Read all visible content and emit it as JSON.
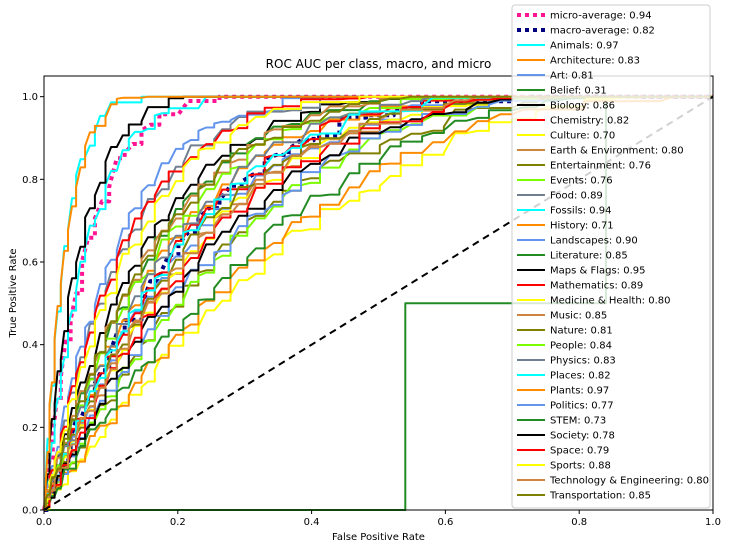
{
  "chart_data": {
    "type": "line",
    "title": "ROC AUC per class, macro, and micro",
    "xlabel": "False Positive Rate",
    "ylabel": "True Positive Rate",
    "xlim": [
      0.0,
      1.0
    ],
    "ylim": [
      0.0,
      1.05
    ],
    "xticks": [
      "0.0",
      "0.2",
      "0.4",
      "0.6",
      "0.8",
      "1.0"
    ],
    "yticks": [
      "0.0",
      "0.2",
      "0.4",
      "0.6",
      "0.8",
      "1.0"
    ],
    "grid": false,
    "legend_position": "upper-right",
    "diagonal": {
      "x": [
        0,
        1
      ],
      "y": [
        0,
        1
      ],
      "color": "#000000",
      "style": "dashed"
    },
    "series": [
      {
        "name": "micro-average: 0.94",
        "auc": 0.94,
        "color": "#ff1493",
        "style": "dotted",
        "width": 4
      },
      {
        "name": "macro-average: 0.82",
        "auc": 0.82,
        "color": "#000080",
        "style": "dotted",
        "width": 4
      },
      {
        "name": "Animals: 0.97",
        "auc": 0.97,
        "color": "#00ffff",
        "style": "solid",
        "width": 2
      },
      {
        "name": "Architecture: 0.83",
        "auc": 0.83,
        "color": "#ff8c00",
        "style": "solid",
        "width": 2
      },
      {
        "name": "Art: 0.81",
        "auc": 0.81,
        "color": "#6495ed",
        "style": "solid",
        "width": 2
      },
      {
        "name": "Belief: 0.31",
        "auc": 0.31,
        "color": "#228b22",
        "style": "solid",
        "width": 2,
        "x": [
          0.0,
          0.54,
          0.54,
          0.84,
          0.84,
          1.0
        ],
        "y": [
          0.0,
          0.0,
          0.5,
          0.5,
          1.0,
          1.0
        ]
      },
      {
        "name": "Biology: 0.86",
        "auc": 0.86,
        "color": "#000000",
        "style": "solid",
        "width": 2
      },
      {
        "name": "Chemistry: 0.82",
        "auc": 0.82,
        "color": "#ff0000",
        "style": "solid",
        "width": 2
      },
      {
        "name": "Culture: 0.70",
        "auc": 0.7,
        "color": "#ffff00",
        "style": "solid",
        "width": 2
      },
      {
        "name": "Earth & Environment: 0.80",
        "auc": 0.8,
        "color": "#cd853f",
        "style": "solid",
        "width": 2
      },
      {
        "name": "Entertainment: 0.76",
        "auc": 0.76,
        "color": "#808000",
        "style": "solid",
        "width": 2
      },
      {
        "name": "Events: 0.76",
        "auc": 0.76,
        "color": "#7cfc00",
        "style": "solid",
        "width": 2
      },
      {
        "name": "Food: 0.89",
        "auc": 0.89,
        "color": "#708090",
        "style": "solid",
        "width": 2
      },
      {
        "name": "Fossils: 0.94",
        "auc": 0.94,
        "color": "#00ffff",
        "style": "solid",
        "width": 2
      },
      {
        "name": "History: 0.71",
        "auc": 0.71,
        "color": "#ff8c00",
        "style": "solid",
        "width": 2
      },
      {
        "name": "Landscapes: 0.90",
        "auc": 0.9,
        "color": "#6495ed",
        "style": "solid",
        "width": 2
      },
      {
        "name": "Literature: 0.85",
        "auc": 0.85,
        "color": "#228b22",
        "style": "solid",
        "width": 2
      },
      {
        "name": "Maps & Flags: 0.95",
        "auc": 0.95,
        "color": "#000000",
        "style": "solid",
        "width": 2
      },
      {
        "name": "Mathematics: 0.89",
        "auc": 0.89,
        "color": "#ff0000",
        "style": "solid",
        "width": 2
      },
      {
        "name": "Medicine & Health: 0.80",
        "auc": 0.8,
        "color": "#ffff00",
        "style": "solid",
        "width": 2
      },
      {
        "name": "Music: 0.85",
        "auc": 0.85,
        "color": "#cd853f",
        "style": "solid",
        "width": 2
      },
      {
        "name": "Nature: 0.81",
        "auc": 0.81,
        "color": "#808000",
        "style": "solid",
        "width": 2
      },
      {
        "name": "People: 0.84",
        "auc": 0.84,
        "color": "#7cfc00",
        "style": "solid",
        "width": 2
      },
      {
        "name": "Physics: 0.83",
        "auc": 0.83,
        "color": "#708090",
        "style": "solid",
        "width": 2
      },
      {
        "name": "Places: 0.82",
        "auc": 0.82,
        "color": "#00ffff",
        "style": "solid",
        "width": 2
      },
      {
        "name": "Plants: 0.97",
        "auc": 0.97,
        "color": "#ff8c00",
        "style": "solid",
        "width": 2
      },
      {
        "name": "Politics: 0.77",
        "auc": 0.77,
        "color": "#6495ed",
        "style": "solid",
        "width": 2
      },
      {
        "name": "STEM: 0.73",
        "auc": 0.73,
        "color": "#228b22",
        "style": "solid",
        "width": 2
      },
      {
        "name": "Society: 0.78",
        "auc": 0.78,
        "color": "#000000",
        "style": "solid",
        "width": 2
      },
      {
        "name": "Space: 0.79",
        "auc": 0.79,
        "color": "#ff0000",
        "style": "solid",
        "width": 2
      },
      {
        "name": "Sports: 0.88",
        "auc": 0.88,
        "color": "#ffff00",
        "style": "solid",
        "width": 2
      },
      {
        "name": "Technology & Engineering: 0.80",
        "auc": 0.8,
        "color": "#cd853f",
        "style": "solid",
        "width": 2
      },
      {
        "name": "Transportation: 0.85",
        "auc": 0.85,
        "color": "#808000",
        "style": "solid",
        "width": 2
      }
    ]
  }
}
